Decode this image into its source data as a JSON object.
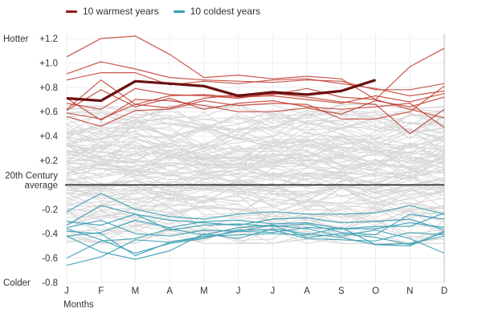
{
  "legend": {
    "warm_label": "10 warmest years",
    "cold_label": "10 coldest years"
  },
  "colors": {
    "warm": "#c0392b",
    "warm_current": "#6b0f0f",
    "cold": "#3a9fb4",
    "other": "#d8d8d8",
    "grid": "#eeeeee",
    "baseline": "#222222",
    "text": "#333333"
  },
  "chart_data": {
    "type": "line",
    "title": "",
    "xlabel": "Months",
    "ylabel": "",
    "categories": [
      "J",
      "F",
      "M",
      "A",
      "M",
      "J",
      "J",
      "A",
      "S",
      "O",
      "N",
      "D"
    ],
    "ylim": [
      -0.8,
      1.2
    ],
    "yticks": [
      {
        "value": 1.2,
        "label": "+1.2"
      },
      {
        "value": 1.0,
        "label": "+1.0"
      },
      {
        "value": 0.8,
        "label": "+0.8"
      },
      {
        "value": 0.6,
        "label": "+0.6"
      },
      {
        "value": 0.4,
        "label": "+0.4"
      },
      {
        "value": 0.2,
        "label": "+0.2"
      },
      {
        "value": -0.2,
        "label": "-0.2"
      },
      {
        "value": -0.4,
        "label": "-0.4"
      },
      {
        "value": -0.6,
        "label": "-0.6"
      },
      {
        "value": -0.8,
        "label": "-0.8"
      }
    ],
    "baseline": {
      "value": 0,
      "label_line1": "20th Century",
      "label_line2": "average"
    },
    "side_labels": {
      "top": "Hotter",
      "bottom": "Colder"
    },
    "grid": true,
    "legend_position": "top-left",
    "highlight_series": {
      "group": "warm",
      "values": [
        0.71,
        0.69,
        0.85,
        0.83,
        0.81,
        0.73,
        0.76,
        0.74,
        0.77,
        0.86,
        null,
        null
      ]
    },
    "warm_series": [
      [
        1.05,
        1.2,
        1.22,
        1.07,
        0.88,
        0.9,
        0.87,
        0.89,
        0.87,
        0.7,
        0.97,
        1.12
      ],
      [
        0.91,
        1.01,
        0.95,
        0.88,
        0.86,
        0.85,
        0.84,
        0.86,
        0.85,
        0.78,
        0.78,
        0.83
      ],
      [
        0.86,
        0.92,
        0.92,
        0.82,
        0.85,
        0.83,
        0.86,
        0.87,
        0.83,
        0.79,
        0.73,
        0.77
      ],
      [
        0.62,
        0.86,
        0.66,
        0.63,
        0.71,
        0.74,
        0.74,
        0.79,
        0.72,
        0.7,
        0.62,
        0.55
      ],
      [
        0.59,
        0.54,
        0.66,
        0.73,
        0.74,
        0.72,
        0.73,
        0.7,
        0.67,
        0.73,
        0.68,
        0.75
      ],
      [
        0.61,
        0.78,
        0.64,
        0.71,
        0.62,
        0.67,
        0.69,
        0.64,
        0.62,
        0.64,
        0.67,
        0.47
      ],
      [
        0.71,
        0.53,
        0.7,
        0.69,
        0.65,
        0.6,
        0.6,
        0.63,
        0.58,
        0.69,
        0.64,
        0.72
      ],
      [
        0.56,
        0.48,
        0.61,
        0.62,
        0.69,
        0.65,
        0.67,
        0.66,
        0.54,
        0.54,
        0.6,
        0.81
      ],
      [
        0.67,
        0.62,
        0.79,
        0.74,
        0.73,
        0.71,
        0.75,
        0.72,
        0.68,
        0.66,
        0.42,
        0.62
      ]
    ],
    "cold_series": [
      [
        -0.35,
        -0.29,
        -0.4,
        -0.42,
        -0.37,
        -0.38,
        -0.39,
        -0.35,
        -0.36,
        -0.36,
        -0.31,
        -0.35
      ],
      [
        -0.36,
        -0.45,
        -0.56,
        -0.48,
        -0.44,
        -0.37,
        -0.37,
        -0.44,
        -0.45,
        -0.46,
        -0.39,
        -0.41
      ],
      [
        -0.6,
        -0.46,
        -0.44,
        -0.36,
        -0.41,
        -0.35,
        -0.33,
        -0.36,
        -0.42,
        -0.37,
        -0.44,
        -0.56
      ],
      [
        -0.42,
        -0.39,
        -0.29,
        -0.35,
        -0.3,
        -0.29,
        -0.32,
        -0.31,
        -0.36,
        -0.34,
        -0.34,
        -0.23
      ],
      [
        -0.66,
        -0.59,
        -0.45,
        -0.47,
        -0.42,
        -0.41,
        -0.4,
        -0.41,
        -0.35,
        -0.49,
        -0.48,
        -0.42
      ],
      [
        -0.22,
        -0.07,
        -0.2,
        -0.26,
        -0.28,
        -0.24,
        -0.22,
        -0.24,
        -0.24,
        -0.23,
        -0.17,
        -0.24
      ],
      [
        -0.33,
        -0.17,
        -0.24,
        -0.29,
        -0.31,
        -0.33,
        -0.28,
        -0.27,
        -0.31,
        -0.3,
        -0.28,
        -0.37
      ],
      [
        -0.38,
        -0.4,
        -0.58,
        -0.47,
        -0.43,
        -0.38,
        -0.33,
        -0.43,
        -0.4,
        -0.43,
        -0.49,
        -0.39
      ],
      [
        -0.42,
        -0.55,
        -0.61,
        -0.54,
        -0.4,
        -0.44,
        -0.36,
        -0.4,
        -0.43,
        -0.49,
        -0.5,
        -0.38
      ],
      [
        -0.3,
        -0.33,
        -0.24,
        -0.37,
        -0.33,
        -0.32,
        -0.34,
        -0.32,
        -0.39,
        -0.41,
        -0.24,
        -0.28
      ]
    ],
    "background_series_note": "About 120 other years shown as thin light-gray lines spanning roughly -0.45 to +0.65."
  }
}
